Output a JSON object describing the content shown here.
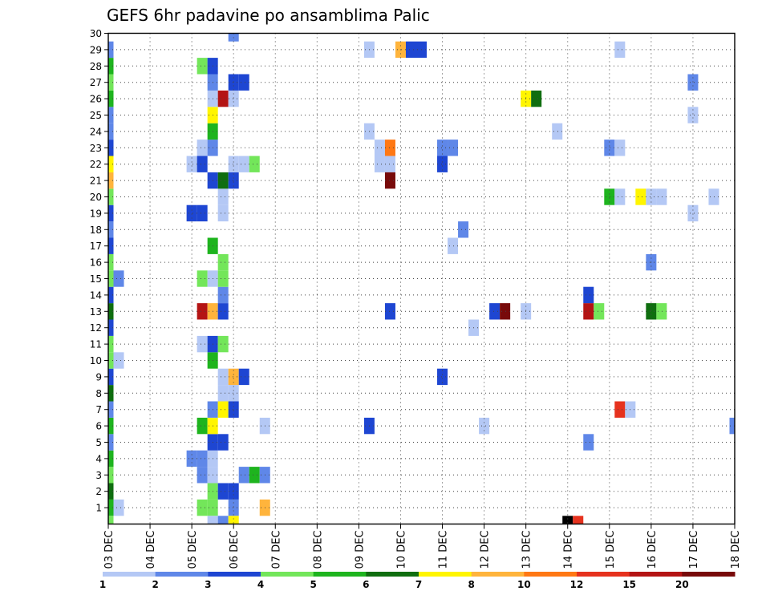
{
  "chart_data": {
    "type": "heatmap",
    "title": "GEFS 6hr padavine po ansamblima Palic",
    "xlabel": "",
    "ylabel": "",
    "x_ticks": [
      "03 DEC",
      "04 DEC",
      "05 DEC",
      "06 DEC",
      "07 DEC",
      "08 DEC",
      "09 DEC",
      "10 DEC",
      "11 DEC",
      "12 DEC",
      "13 DEC",
      "14 DEC",
      "15 DEC",
      "16 DEC",
      "17 DEC",
      "18 DEC"
    ],
    "y_ticks": [
      "1",
      "2",
      "3",
      "4",
      "5",
      "6",
      "7",
      "8",
      "9",
      "10",
      "11",
      "12",
      "13",
      "14",
      "15",
      "16",
      "17",
      "18",
      "19",
      "20",
      "21",
      "22",
      "23",
      "24",
      "25",
      "26",
      "27",
      "28",
      "29",
      "30"
    ],
    "xlim_steps": [
      0,
      60
    ],
    "ylim_members": [
      0,
      30
    ],
    "grid": true,
    "colorbar": {
      "levels": [
        "1",
        "2",
        "3",
        "4",
        "5",
        "6",
        "7",
        "8",
        "10",
        "12",
        "15",
        "20"
      ],
      "colors": [
        "#b4c8f5",
        "#5f87e8",
        "#1e46d2",
        "#73e65a",
        "#1eb41e",
        "#0f6e0f",
        "#fff500",
        "#ffb43c",
        "#ff7814",
        "#e6321e",
        "#b41414",
        "#780a0a"
      ]
    },
    "cells": [
      {
        "t": 0,
        "m": 1,
        "c": 4
      },
      {
        "t": 0,
        "m": 2,
        "c": 5
      },
      {
        "t": 0,
        "m": 3,
        "c": 3
      },
      {
        "t": 0,
        "m": 4,
        "c": 4
      },
      {
        "t": 0,
        "m": 5,
        "c": 1
      },
      {
        "t": 0,
        "m": 6,
        "c": 4
      },
      {
        "t": 0,
        "m": 7,
        "c": 1
      },
      {
        "t": 0,
        "m": 8,
        "c": 5
      },
      {
        "t": 0,
        "m": 9,
        "c": 2
      },
      {
        "t": 0,
        "m": 10,
        "c": 3
      },
      {
        "t": 0,
        "m": 11,
        "c": 3
      },
      {
        "t": 0,
        "m": 12,
        "c": 2
      },
      {
        "t": 0,
        "m": 13,
        "c": 5
      },
      {
        "t": 0,
        "m": 14,
        "c": 2
      },
      {
        "t": 0,
        "m": 15,
        "c": 3
      },
      {
        "t": 0,
        "m": 16,
        "c": 3
      },
      {
        "t": 0,
        "m": 17,
        "c": 2
      },
      {
        "t": 0,
        "m": 18,
        "c": 1
      },
      {
        "t": 0,
        "m": 19,
        "c": 2
      },
      {
        "t": 0,
        "m": 20,
        "c": 3
      },
      {
        "t": 0,
        "m": 21,
        "c": 7
      },
      {
        "t": 0,
        "m": 22,
        "c": 6
      },
      {
        "t": 0,
        "m": 23,
        "c": 2
      },
      {
        "t": 0,
        "m": 24,
        "c": 1
      },
      {
        "t": 0,
        "m": 25,
        "c": 1
      },
      {
        "t": 0,
        "m": 26,
        "c": 4
      },
      {
        "t": 0,
        "m": 27,
        "c": 3
      },
      {
        "t": 0,
        "m": 28,
        "c": 4
      },
      {
        "t": 0,
        "m": 29,
        "c": 1
      },
      {
        "t": 0,
        "m": 0,
        "c": 3
      },
      {
        "t": 1,
        "m": 1,
        "c": 0
      },
      {
        "t": 1,
        "m": 10,
        "c": 0
      },
      {
        "t": 1,
        "m": 15,
        "c": 1
      },
      {
        "t": 8,
        "m": 4,
        "c": 1
      },
      {
        "t": 8,
        "m": 19,
        "c": 2
      },
      {
        "t": 8,
        "m": 22,
        "c": 0
      },
      {
        "t": 9,
        "m": 1,
        "c": 3
      },
      {
        "t": 9,
        "m": 3,
        "c": 1
      },
      {
        "t": 9,
        "m": 4,
        "c": 1
      },
      {
        "t": 9,
        "m": 6,
        "c": 4
      },
      {
        "t": 9,
        "m": 11,
        "c": 0
      },
      {
        "t": 9,
        "m": 13,
        "c": 10
      },
      {
        "t": 9,
        "m": 15,
        "c": 3
      },
      {
        "t": 9,
        "m": 19,
        "c": 2
      },
      {
        "t": 9,
        "m": 22,
        "c": 2
      },
      {
        "t": 9,
        "m": 23,
        "c": 0
      },
      {
        "t": 9,
        "m": 28,
        "c": 3
      },
      {
        "t": 10,
        "m": 1,
        "c": 3
      },
      {
        "t": 10,
        "m": 2,
        "c": 3
      },
      {
        "t": 10,
        "m": 3,
        "c": 0
      },
      {
        "t": 10,
        "m": 4,
        "c": 0
      },
      {
        "t": 10,
        "m": 5,
        "c": 2
      },
      {
        "t": 10,
        "m": 6,
        "c": 6
      },
      {
        "t": 10,
        "m": 7,
        "c": 1
      },
      {
        "t": 10,
        "m": 10,
        "c": 4
      },
      {
        "t": 10,
        "m": 11,
        "c": 2
      },
      {
        "t": 10,
        "m": 13,
        "c": 7
      },
      {
        "t": 10,
        "m": 15,
        "c": 0
      },
      {
        "t": 10,
        "m": 17,
        "c": 4
      },
      {
        "t": 10,
        "m": 21,
        "c": 2
      },
      {
        "t": 10,
        "m": 23,
        "c": 1
      },
      {
        "t": 10,
        "m": 24,
        "c": 4
      },
      {
        "t": 10,
        "m": 25,
        "c": 6
      },
      {
        "t": 10,
        "m": 26,
        "c": 0
      },
      {
        "t": 10,
        "m": 27,
        "c": 1
      },
      {
        "t": 10,
        "m": 28,
        "c": 2
      },
      {
        "t": 10,
        "m": 0,
        "c": 0
      },
      {
        "t": 11,
        "m": 2,
        "c": 2
      },
      {
        "t": 11,
        "m": 5,
        "c": 2
      },
      {
        "t": 11,
        "m": 7,
        "c": 6
      },
      {
        "t": 11,
        "m": 8,
        "c": 0
      },
      {
        "t": 11,
        "m": 9,
        "c": 0
      },
      {
        "t": 11,
        "m": 11,
        "c": 3
      },
      {
        "t": 11,
        "m": 13,
        "c": 2
      },
      {
        "t": 11,
        "m": 14,
        "c": 1
      },
      {
        "t": 11,
        "m": 15,
        "c": 3
      },
      {
        "t": 11,
        "m": 16,
        "c": 3
      },
      {
        "t": 11,
        "m": 19,
        "c": 0
      },
      {
        "t": 11,
        "m": 20,
        "c": 0
      },
      {
        "t": 11,
        "m": 21,
        "c": 5
      },
      {
        "t": 11,
        "m": 26,
        "c": 10
      },
      {
        "t": 11,
        "m": 0,
        "c": 1
      },
      {
        "t": 12,
        "m": 1,
        "c": 1
      },
      {
        "t": 12,
        "m": 2,
        "c": 2
      },
      {
        "t": 12,
        "m": 7,
        "c": 2
      },
      {
        "t": 12,
        "m": 8,
        "c": 0
      },
      {
        "t": 12,
        "m": 9,
        "c": 7
      },
      {
        "t": 12,
        "m": 21,
        "c": 2
      },
      {
        "t": 12,
        "m": 22,
        "c": 0
      },
      {
        "t": 12,
        "m": 26,
        "c": 0
      },
      {
        "t": 12,
        "m": 27,
        "c": 2
      },
      {
        "t": 12,
        "m": 30,
        "c": 1
      },
      {
        "t": 12,
        "m": 0,
        "c": 6
      },
      {
        "t": 13,
        "m": 3,
        "c": 1
      },
      {
        "t": 13,
        "m": 9,
        "c": 2
      },
      {
        "t": 13,
        "m": 22,
        "c": 0
      },
      {
        "t": 13,
        "m": 27,
        "c": 2
      },
      {
        "t": 14,
        "m": 3,
        "c": 4
      },
      {
        "t": 14,
        "m": 22,
        "c": 3
      },
      {
        "t": 15,
        "m": 1,
        "c": 7
      },
      {
        "t": 15,
        "m": 3,
        "c": 1
      },
      {
        "t": 15,
        "m": 6,
        "c": 0
      },
      {
        "t": 25,
        "m": 6,
        "c": 2
      },
      {
        "t": 25,
        "m": 24,
        "c": 0
      },
      {
        "t": 25,
        "m": 29,
        "c": 0
      },
      {
        "t": 26,
        "m": 23,
        "c": 0
      },
      {
        "t": 26,
        "m": 22,
        "c": 0
      },
      {
        "t": 27,
        "m": 13,
        "c": 2
      },
      {
        "t": 27,
        "m": 22,
        "c": 0
      },
      {
        "t": 27,
        "m": 23,
        "c": 8
      },
      {
        "t": 27,
        "m": 21,
        "c": 11
      },
      {
        "t": 28,
        "m": 29,
        "c": 7
      },
      {
        "t": 29,
        "m": 29,
        "c": 2
      },
      {
        "t": 30,
        "m": 29,
        "c": 2
      },
      {
        "t": 32,
        "m": 9,
        "c": 2
      },
      {
        "t": 32,
        "m": 22,
        "c": 2
      },
      {
        "t": 32,
        "m": 23,
        "c": 1
      },
      {
        "t": 33,
        "m": 17,
        "c": 0
      },
      {
        "t": 33,
        "m": 23,
        "c": 1
      },
      {
        "t": 34,
        "m": 18,
        "c": 1
      },
      {
        "t": 35,
        "m": 12,
        "c": 0
      },
      {
        "t": 36,
        "m": 6,
        "c": 0
      },
      {
        "t": 37,
        "m": 13,
        "c": 2
      },
      {
        "t": 38,
        "m": 13,
        "c": 11
      },
      {
        "t": 40,
        "m": 13,
        "c": 0
      },
      {
        "t": 40,
        "m": 26,
        "c": 6
      },
      {
        "t": 41,
        "m": 26,
        "c": 5
      },
      {
        "t": 43,
        "m": 24,
        "c": 0
      },
      {
        "t": 44,
        "m": 0,
        "c": 13
      },
      {
        "t": 45,
        "m": 0,
        "c": 9
      },
      {
        "t": 46,
        "m": 5,
        "c": 1
      },
      {
        "t": 46,
        "m": 13,
        "c": 10
      },
      {
        "t": 46,
        "m": 14,
        "c": 2
      },
      {
        "t": 47,
        "m": 13,
        "c": 3
      },
      {
        "t": 48,
        "m": 20,
        "c": 4
      },
      {
        "t": 48,
        "m": 23,
        "c": 1
      },
      {
        "t": 49,
        "m": 7,
        "c": 9
      },
      {
        "t": 49,
        "m": 20,
        "c": 0
      },
      {
        "t": 49,
        "m": 23,
        "c": 0
      },
      {
        "t": 49,
        "m": 29,
        "c": 0
      },
      {
        "t": 50,
        "m": 7,
        "c": 0
      },
      {
        "t": 51,
        "m": 20,
        "c": 6
      },
      {
        "t": 52,
        "m": 13,
        "c": 5
      },
      {
        "t": 52,
        "m": 16,
        "c": 1
      },
      {
        "t": 52,
        "m": 20,
        "c": 0
      },
      {
        "t": 53,
        "m": 13,
        "c": 3
      },
      {
        "t": 53,
        "m": 20,
        "c": 0
      },
      {
        "t": 56,
        "m": 19,
        "c": 0
      },
      {
        "t": 56,
        "m": 25,
        "c": 0
      },
      {
        "t": 56,
        "m": 27,
        "c": 1
      },
      {
        "t": 58,
        "m": 20,
        "c": 0
      },
      {
        "t": 60,
        "m": 6,
        "c": 1
      }
    ]
  }
}
